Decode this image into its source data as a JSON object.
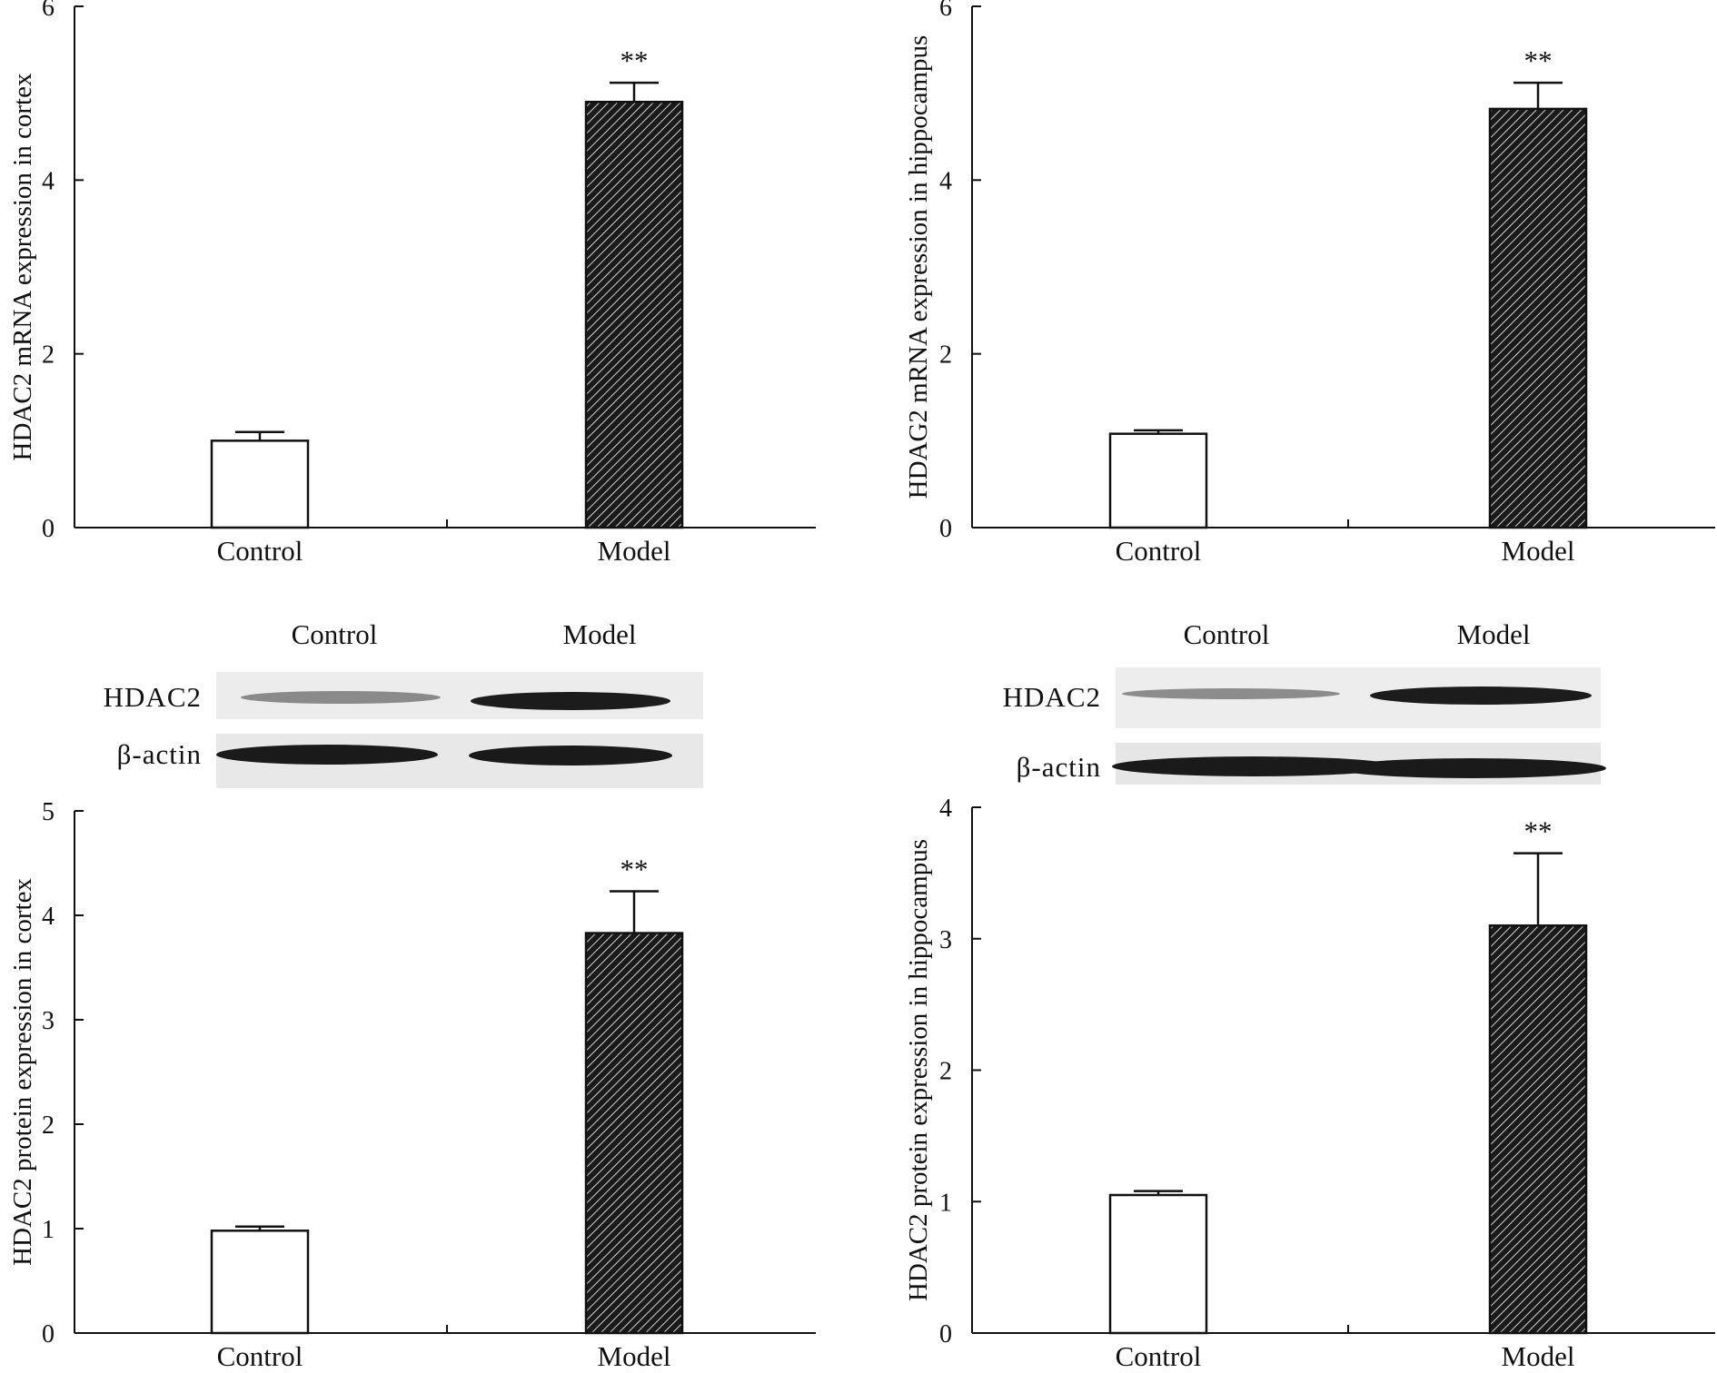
{
  "blots": [
    {
      "lanes": [
        "Control",
        "Model"
      ],
      "rows": [
        "HDAC2",
        "β-actin"
      ]
    },
    {
      "lanes": [
        "Control",
        "Model"
      ],
      "rows": [
        "HDAC2",
        "β-actin"
      ]
    }
  ],
  "colors": {
    "control_fill": "#ffffff",
    "model_fill": "#1a1a1a",
    "model_hatch": "#ffffff",
    "axis": "#111111"
  },
  "chart_data": [
    {
      "type": "bar",
      "title": "",
      "ylabel": "HDAC2 mRNA expression in cortex",
      "categories": [
        "Control",
        "Model"
      ],
      "values": [
        1.0,
        4.9
      ],
      "errors": [
        0.1,
        0.22
      ],
      "annotations": [
        "",
        "**"
      ],
      "ylim": [
        0,
        6
      ],
      "yticks": [
        0,
        2,
        4,
        6
      ]
    },
    {
      "type": "bar",
      "title": "",
      "ylabel": "HDAG2 mRNA expression in hippocampus",
      "categories": [
        "Control",
        "Model"
      ],
      "values": [
        1.08,
        4.82
      ],
      "errors": [
        0.04,
        0.3
      ],
      "annotations": [
        "",
        "**"
      ],
      "ylim": [
        0,
        6
      ],
      "yticks": [
        0,
        2,
        4,
        6
      ]
    },
    {
      "type": "bar",
      "title": "",
      "ylabel": "HDAC2 protein expression in cortex",
      "categories": [
        "Control",
        "Model"
      ],
      "values": [
        0.98,
        3.83
      ],
      "errors": [
        0.04,
        0.4
      ],
      "annotations": [
        "",
        "**"
      ],
      "ylim": [
        0,
        5
      ],
      "yticks": [
        0,
        1,
        2,
        3,
        4,
        5
      ]
    },
    {
      "type": "bar",
      "title": "",
      "ylabel": "HDAC2 protein expression in hippocampus",
      "categories": [
        "Control",
        "Model"
      ],
      "values": [
        1.05,
        3.1
      ],
      "errors": [
        0.03,
        0.55
      ],
      "annotations": [
        "",
        "**"
      ],
      "ylim": [
        0,
        4
      ],
      "yticks": [
        0,
        1,
        2,
        3,
        4
      ]
    }
  ]
}
